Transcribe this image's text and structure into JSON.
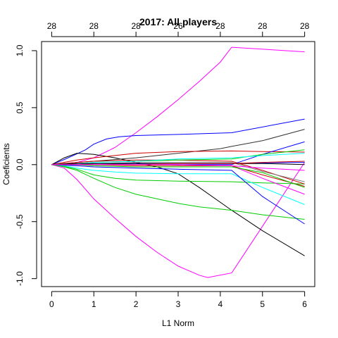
{
  "chart_data": {
    "type": "line",
    "title": "2017: All players",
    "xlabel": "L1 Norm",
    "ylabel": "Coeficients",
    "xlim": [
      -0.24,
      6.24
    ],
    "ylim": [
      -1.07,
      1.08
    ],
    "x_ticks": [
      0,
      1,
      2,
      3,
      4,
      5,
      6
    ],
    "y_ticks": [
      -1.0,
      -0.5,
      0.0,
      0.5,
      1.0
    ],
    "y_tick_labels": [
      "-1.0",
      "-0.5",
      "0.0",
      "0.5",
      "1.0"
    ],
    "top_ticks": [
      0,
      1,
      2,
      3,
      4,
      5,
      6
    ],
    "top_tick_labels": [
      "28",
      "28",
      "28",
      "26",
      "28",
      "28",
      "28"
    ],
    "grid": false,
    "legend": "none",
    "series": [
      {
        "color": "#ff00ff",
        "x": [
          0.0,
          0.3,
          0.6,
          1.0,
          1.5,
          2.0,
          2.5,
          3.0,
          3.5,
          4.0,
          4.27,
          6.0
        ],
        "values": [
          0.0,
          0.005,
          0.02,
          0.06,
          0.15,
          0.28,
          0.42,
          0.57,
          0.73,
          0.9,
          1.03,
          0.99
        ]
      },
      {
        "color": "#ff00ff",
        "x": [
          0.0,
          0.3,
          0.6,
          1.0,
          1.5,
          2.0,
          2.5,
          3.0,
          3.5,
          3.7,
          4.27,
          6.0
        ],
        "values": [
          0.0,
          -0.03,
          -0.13,
          -0.3,
          -0.47,
          -0.63,
          -0.77,
          -0.89,
          -0.97,
          -0.99,
          -0.95,
          0.02
        ]
      },
      {
        "color": "#0000ff",
        "x": [
          0.0,
          0.3,
          0.6,
          0.8,
          1.0,
          1.3,
          1.6,
          2.0,
          3.0,
          4.27,
          6.0
        ],
        "values": [
          0.0,
          0.045,
          0.095,
          0.13,
          0.18,
          0.225,
          0.245,
          0.255,
          0.265,
          0.28,
          0.4
        ]
      },
      {
        "color": "#000000",
        "x": [
          0.0,
          0.3,
          0.6,
          1.0,
          1.5,
          2.0,
          2.5,
          3.0,
          3.5,
          4.27,
          5.0,
          6.0
        ],
        "values": [
          0.0,
          0.06,
          0.1,
          0.09,
          0.06,
          0.02,
          -0.02,
          -0.08,
          -0.2,
          -0.4,
          -0.58,
          -0.8
        ]
      },
      {
        "color": "#00cd00",
        "x": [
          0.0,
          0.3,
          0.6,
          1.0,
          1.5,
          2.0,
          2.5,
          3.0,
          3.5,
          4.27,
          5.0,
          6.0
        ],
        "values": [
          0.0,
          -0.02,
          -0.05,
          -0.12,
          -0.2,
          -0.26,
          -0.3,
          -0.34,
          -0.37,
          -0.4,
          -0.44,
          -0.48
        ]
      },
      {
        "color": "#00cd00",
        "x": [
          0.0,
          0.3,
          0.6,
          1.0,
          1.5,
          2.0,
          2.5,
          3.0,
          4.27,
          5.0,
          6.0
        ],
        "values": [
          0.0,
          -0.015,
          -0.04,
          -0.09,
          -0.12,
          -0.135,
          -0.14,
          -0.145,
          -0.15,
          -0.16,
          -0.17
        ]
      },
      {
        "color": "#00ffff",
        "x": [
          0.0,
          0.3,
          0.6,
          1.0,
          1.5,
          2.0,
          3.0,
          4.27,
          5.0,
          6.0
        ],
        "values": [
          0.0,
          -0.01,
          -0.03,
          -0.05,
          -0.065,
          -0.075,
          -0.08,
          -0.08,
          -0.2,
          -0.35
        ]
      },
      {
        "color": "#0000ff",
        "x": [
          0.0,
          0.6,
          1.0,
          2.0,
          3.0,
          4.27,
          5.0,
          6.0
        ],
        "values": [
          0.0,
          -0.01,
          -0.02,
          -0.03,
          -0.04,
          -0.05,
          -0.28,
          -0.52
        ]
      },
      {
        "color": "#333333",
        "x": [
          0.0,
          0.6,
          1.0,
          2.0,
          3.0,
          4.0,
          4.27,
          5.0,
          6.0
        ],
        "values": [
          0.0,
          0.02,
          0.03,
          0.06,
          0.1,
          0.14,
          0.16,
          0.21,
          0.31
        ]
      },
      {
        "color": "#cd0000",
        "x": [
          0.0,
          0.6,
          1.0,
          1.5,
          2.0,
          3.0,
          4.27,
          5.0,
          6.0
        ],
        "values": [
          0.0,
          0.04,
          0.06,
          0.08,
          0.1,
          0.115,
          0.12,
          0.115,
          0.11
        ]
      },
      {
        "color": "#cd0000",
        "x": [
          0.0,
          0.6,
          1.0,
          2.0,
          3.0,
          4.27,
          5.0,
          6.0
        ],
        "values": [
          0.0,
          0.02,
          0.03,
          0.04,
          0.04,
          0.03,
          -0.05,
          -0.17
        ]
      },
      {
        "color": "#ff00ff",
        "x": [
          0.0,
          0.6,
          1.0,
          2.0,
          3.0,
          4.27,
          5.0,
          6.0
        ],
        "values": [
          0.0,
          0.01,
          0.01,
          0.01,
          0.0,
          -0.01,
          -0.12,
          -0.26
        ]
      },
      {
        "color": "#0000ff",
        "x": [
          0.0,
          0.6,
          1.0,
          2.0,
          3.0,
          4.27,
          5.0,
          6.0
        ],
        "values": [
          0.0,
          0.01,
          0.01,
          0.01,
          0.0,
          0.0,
          0.09,
          0.2
        ]
      },
      {
        "color": "#00cd00",
        "x": [
          0.0,
          0.6,
          1.0,
          2.0,
          3.0,
          4.27,
          5.0,
          6.0
        ],
        "values": [
          0.0,
          0.01,
          0.02,
          0.03,
          0.04,
          0.05,
          0.09,
          0.13
        ]
      },
      {
        "color": "#00ffff",
        "x": [
          0.0,
          0.6,
          1.0,
          2.0,
          3.0,
          4.27,
          5.0,
          6.0
        ],
        "values": [
          0.0,
          0.01,
          0.02,
          0.03,
          0.05,
          0.06,
          0.08,
          0.1
        ]
      },
      {
        "color": "#0000ff",
        "x": [
          0.0,
          0.6,
          1.0,
          2.0,
          3.0,
          4.27,
          5.0,
          6.0
        ],
        "values": [
          0.0,
          0.0,
          0.01,
          0.01,
          0.01,
          0.01,
          0.015,
          0.02
        ]
      },
      {
        "color": "#cd0000",
        "x": [
          0.0,
          0.6,
          1.0,
          2.0,
          3.0,
          4.27,
          5.0,
          6.0
        ],
        "values": [
          0.0,
          0.0,
          0.0,
          -0.01,
          -0.01,
          -0.01,
          -0.09,
          -0.19
        ]
      },
      {
        "color": "#7f7f7f",
        "x": [
          0.0,
          0.6,
          1.0,
          2.0,
          3.0,
          4.27,
          5.0,
          6.0
        ],
        "values": [
          0.0,
          0.0,
          0.01,
          0.02,
          0.02,
          0.02,
          -0.06,
          -0.15
        ]
      },
      {
        "color": "#000000",
        "x": [
          0.0,
          0.6,
          1.0,
          2.0,
          3.0,
          4.27,
          5.0,
          6.0
        ],
        "values": [
          0.0,
          0.01,
          0.01,
          0.01,
          0.01,
          0.01,
          0.01,
          0.0
        ]
      },
      {
        "color": "#00cd00",
        "x": [
          0.0,
          0.6,
          1.0,
          2.0,
          3.0,
          4.27,
          5.0,
          6.0
        ],
        "values": [
          0.0,
          0.0,
          -0.01,
          -0.02,
          -0.02,
          -0.02,
          -0.07,
          -0.2
        ]
      },
      {
        "color": "#cd0000",
        "x": [
          0.0,
          0.6,
          1.0,
          2.0,
          3.0,
          4.27,
          5.0,
          6.0
        ],
        "values": [
          0.0,
          0.0,
          0.0,
          0.0,
          0.01,
          0.01,
          0.02,
          0.03
        ]
      },
      {
        "color": "#ff00ff",
        "x": [
          0.0,
          0.6,
          1.0,
          2.0,
          3.0,
          4.27,
          5.0,
          6.0
        ],
        "values": [
          0.0,
          0.0,
          0.0,
          0.0,
          0.0,
          -0.01,
          -0.03,
          -0.05
        ]
      }
    ]
  }
}
